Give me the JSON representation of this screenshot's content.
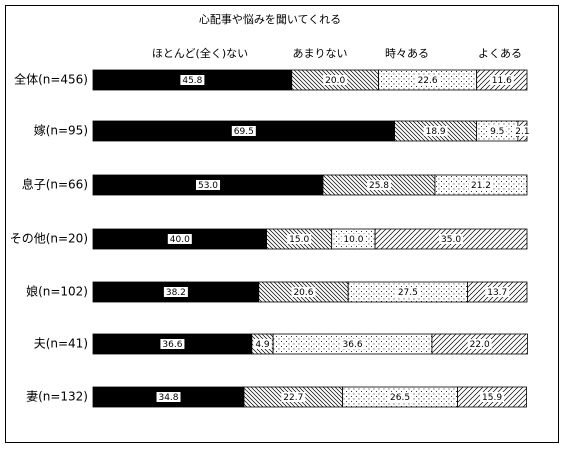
{
  "chart_data": {
    "type": "stacked-bar-horizontal",
    "title": "心配事や悩みを聞いてくれる",
    "categories": [
      "全体(n=456)",
      "嫁(n=95)",
      "息子(n=66)",
      "その他(n=20)",
      "娘(n=102)",
      "夫(n=41)",
      "妻(n=132)"
    ],
    "xlim": [
      0,
      100
    ],
    "series": [
      {
        "name": "ほとんど(全く)ない",
        "color": "#000000",
        "pattern": "solid",
        "values": [
          45.8,
          69.5,
          53.0,
          40.0,
          38.2,
          36.6,
          34.8
        ],
        "value_labels": [
          "45.8",
          "69.5",
          "53.0",
          "40.0",
          "38.2",
          "36.6",
          "34.8"
        ]
      },
      {
        "name": "あまりない",
        "color": "#000000",
        "pattern": "hatch-down",
        "values": [
          20.0,
          18.9,
          25.8,
          15.0,
          20.6,
          4.9,
          22.7
        ],
        "value_labels": [
          "20.0",
          "18.9",
          "25.8",
          "15.0",
          "20.6",
          "4.9",
          "22.7"
        ]
      },
      {
        "name": "時々ある",
        "color": "#000000",
        "pattern": "dots",
        "values": [
          22.6,
          9.5,
          21.2,
          10.0,
          27.5,
          36.6,
          26.5
        ],
        "value_labels": [
          "22.6",
          "9.5",
          "21.2",
          "10.0",
          "27.5",
          "36.6",
          "26.5"
        ]
      },
      {
        "name": "よくある",
        "color": "#000000",
        "pattern": "hatch-up",
        "values": [
          11.6,
          2.1,
          null,
          35.0,
          13.7,
          22.0,
          15.9
        ],
        "value_labels": [
          "11.6",
          "2.1",
          null,
          "35.0",
          "13.7",
          "22.0",
          "15.9"
        ]
      }
    ]
  }
}
